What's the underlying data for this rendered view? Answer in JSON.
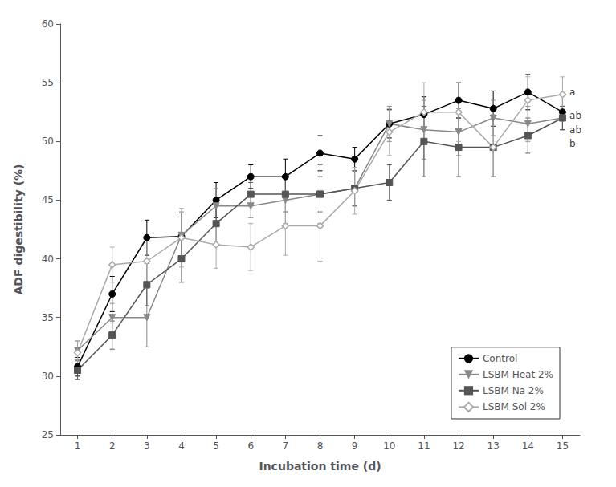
{
  "chart_data": {
    "type": "line",
    "xlabel": "Incubation time (d)",
    "ylabel": "ADF digestibility (%)",
    "x": [
      1,
      2,
      3,
      4,
      5,
      6,
      7,
      8,
      9,
      10,
      11,
      12,
      13,
      14,
      15
    ],
    "series": [
      {
        "name": "Control",
        "color": "#000000",
        "marker": "circle",
        "line_style": "solid",
        "values": [
          30.8,
          37.0,
          41.8,
          41.9,
          45.0,
          47.0,
          47.0,
          49.0,
          48.5,
          51.5,
          52.3,
          53.5,
          52.8,
          54.2,
          52.5
        ],
        "errors": [
          0.8,
          1.5,
          1.5,
          2.0,
          1.5,
          1.0,
          1.5,
          1.5,
          1.0,
          1.2,
          1.5,
          1.5,
          1.5,
          1.5,
          1.5
        ]
      },
      {
        "name": "LSBM Heat 2%",
        "color": "#888888",
        "marker": "triangle_down",
        "line_style": "solid",
        "values": [
          32.2,
          35.0,
          35.0,
          42.0,
          44.5,
          44.5,
          45.0,
          45.5,
          46.0,
          51.5,
          51.0,
          50.8,
          52.0,
          51.5,
          52.0
        ],
        "errors": [
          0.8,
          1.2,
          2.5,
          2.0,
          1.5,
          1.0,
          2.0,
          2.5,
          1.5,
          1.5,
          2.5,
          2.0,
          1.5,
          1.5,
          1.0
        ]
      },
      {
        "name": "LSBM Na 2%",
        "color": "#555555",
        "marker": "square",
        "line_style": "solid",
        "values": [
          30.5,
          33.5,
          37.8,
          40.0,
          43.0,
          45.5,
          45.5,
          45.5,
          46.0,
          46.5,
          50.0,
          49.5,
          49.5,
          50.5,
          52.0
        ],
        "errors": [
          0.8,
          1.2,
          1.8,
          2.0,
          1.5,
          1.0,
          1.5,
          1.5,
          1.5,
          1.5,
          3.0,
          2.5,
          2.5,
          1.5,
          1.0
        ]
      },
      {
        "name": "LSBM Sol 2%",
        "color": "#aaaaaa",
        "marker": "open_diamond",
        "line_style": "solid",
        "values": [
          32.0,
          39.5,
          39.8,
          41.8,
          41.2,
          41.0,
          42.8,
          42.8,
          45.8,
          50.8,
          52.5,
          52.5,
          49.5,
          53.5,
          54.0
        ],
        "errors": [
          1.0,
          1.5,
          2.0,
          2.5,
          2.0,
          2.0,
          2.5,
          3.0,
          2.0,
          2.0,
          2.5,
          2.5,
          2.5,
          2.0,
          1.5
        ]
      }
    ],
    "xlim": [
      0.5,
      15.5
    ],
    "xticks": [
      1,
      2,
      3,
      4,
      5,
      6,
      7,
      8,
      9,
      10,
      11,
      12,
      13,
      14,
      15
    ],
    "ylim": [
      25,
      60
    ],
    "yticks": [
      25,
      30,
      35,
      40,
      45,
      50,
      55,
      60
    ],
    "grid": false,
    "legend": "lower right",
    "annotations": [
      {
        "text": "a",
        "x": 15.2,
        "y": 54.2
      },
      {
        "text": "ab",
        "x": 15.2,
        "y": 52.2
      },
      {
        "text": "ab",
        "x": 15.2,
        "y": 51.0
      },
      {
        "text": "b",
        "x": 15.2,
        "y": 49.8
      }
    ]
  }
}
